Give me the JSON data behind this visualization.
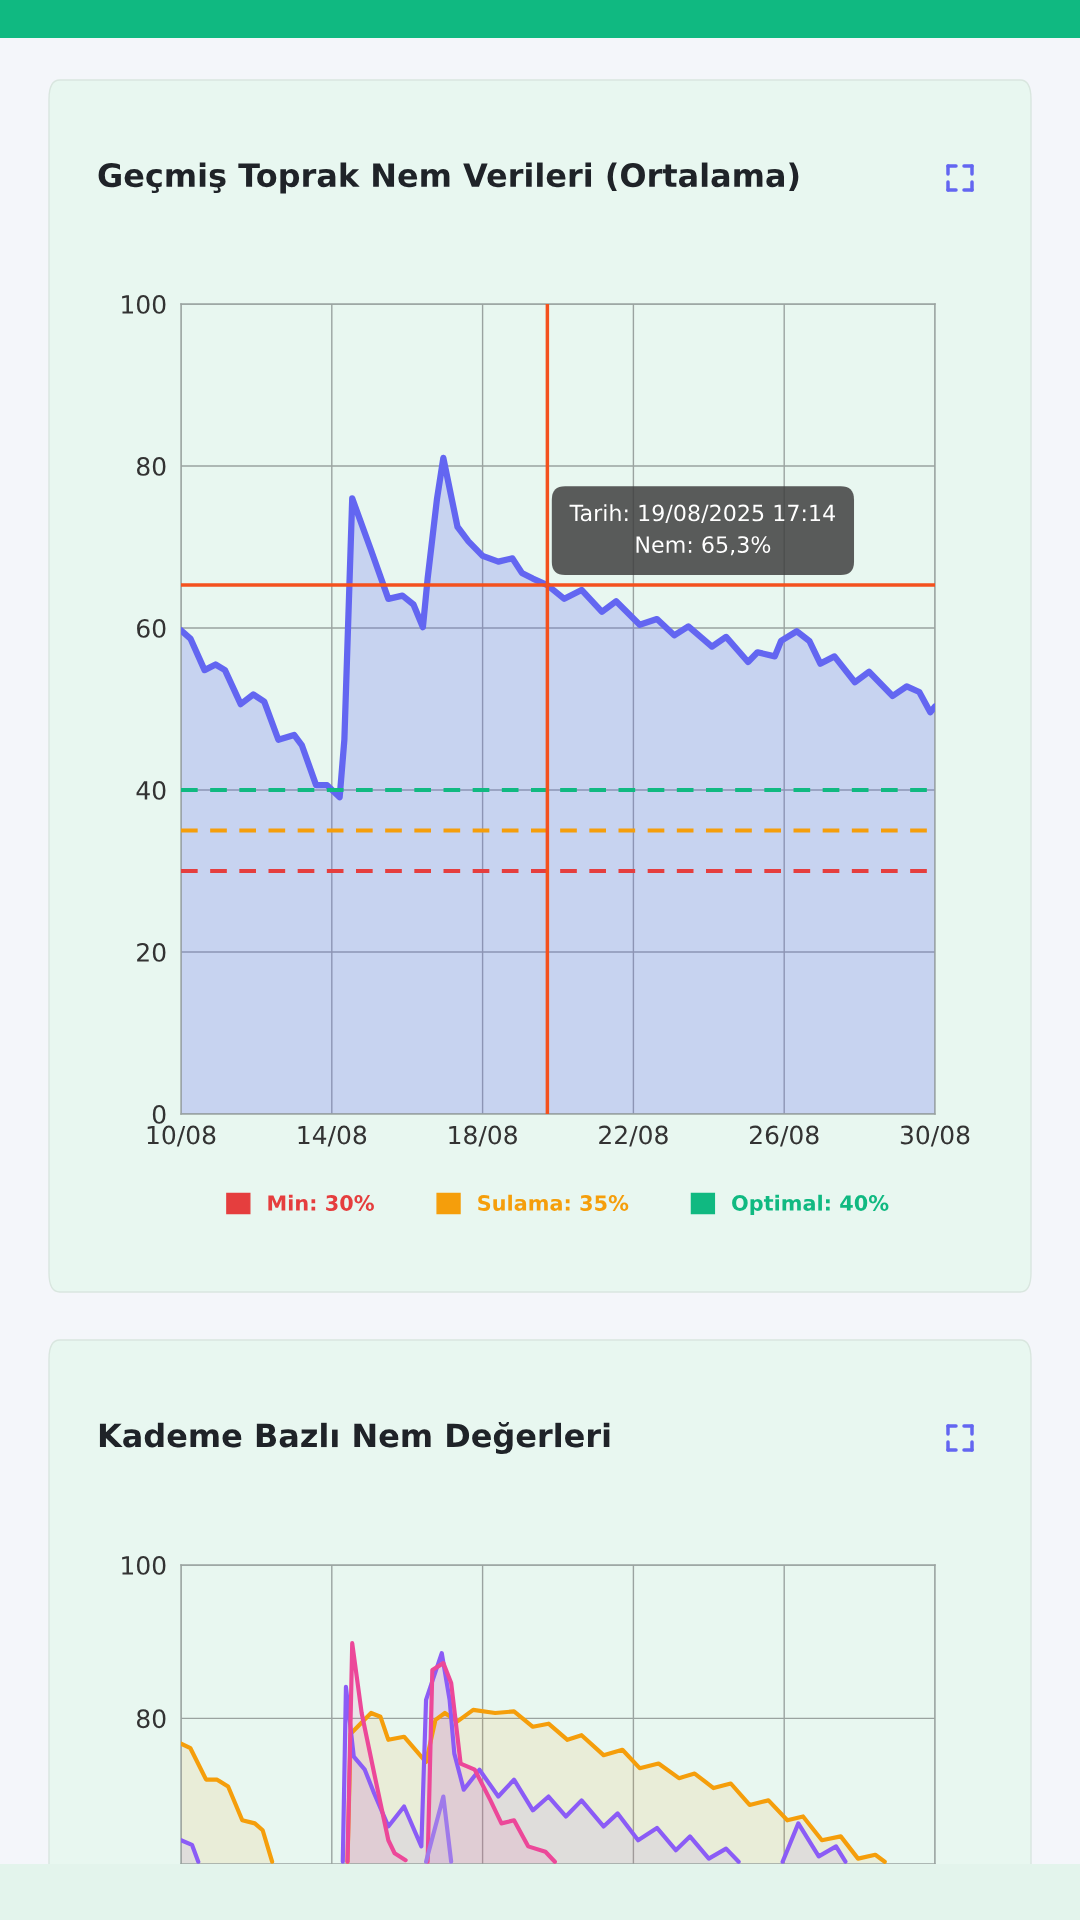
{
  "chart_data": [
    {
      "type": "area",
      "title": "Geçmiş Toprak Nem Verileri (Ortalama)",
      "x": [
        "2025-08-10T00:00",
        "2025-08-10T06:00",
        "2025-08-10T15:00",
        "2025-08-10T22:00",
        "2025-08-11T04:00",
        "2025-08-11T14:00",
        "2025-08-11T22:00",
        "2025-08-12T05:00",
        "2025-08-12T14:00",
        "2025-08-13T00:00",
        "2025-08-13T05:00",
        "2025-08-13T14:00",
        "2025-08-13T21:00",
        "2025-08-14T05:00",
        "2025-08-14T08:00",
        "2025-08-14T13:00",
        "2025-08-15T01:00",
        "2025-08-15T12:00",
        "2025-08-15T21:00",
        "2025-08-16T04:00",
        "2025-08-16T10:00",
        "2025-08-16T13:00",
        "2025-08-16T19:00",
        "2025-08-16T23:00",
        "2025-08-17T08:00",
        "2025-08-17T15:00",
        "2025-08-18T00:00",
        "2025-08-18T10:00",
        "2025-08-18T19:00",
        "2025-08-19T01:00",
        "2025-08-19T08:00",
        "2025-08-19T17:14",
        "2025-08-20T04:00",
        "2025-08-20T15:00",
        "2025-08-21T04:00",
        "2025-08-21T13:00",
        "2025-08-22T04:00",
        "2025-08-22T15:00",
        "2025-08-23T02:00",
        "2025-08-23T11:00",
        "2025-08-24T02:00",
        "2025-08-24T11:00",
        "2025-08-25T01:00",
        "2025-08-25T07:00",
        "2025-08-25T18:00",
        "2025-08-25T22:00",
        "2025-08-26T08:00",
        "2025-08-26T16:00",
        "2025-08-26T23:00",
        "2025-08-27T08:00",
        "2025-08-27T21:00",
        "2025-08-28T06:00",
        "2025-08-28T21:00",
        "2025-08-29T06:00",
        "2025-08-29T14:00",
        "2025-08-29T21:00",
        "2025-08-30T00:00"
      ],
      "series": [
        {
          "color": "#6366f1",
          "values": [
            59.7,
            58.7,
            54.8,
            55.5,
            54.8,
            50.6,
            51.8,
            50.9,
            46.2,
            46.8,
            45.5,
            40.6,
            40.6,
            39.1,
            46.2,
            76.0,
            69.6,
            63.6,
            64.0,
            62.9,
            60.1,
            66.1,
            76.0,
            81.0,
            72.5,
            70.7,
            68.9,
            68.2,
            68.6,
            66.8,
            66.1,
            65.3,
            63.6,
            64.7,
            62.0,
            63.3,
            60.4,
            61.1,
            59.1,
            60.2,
            57.7,
            58.9,
            55.8,
            57.0,
            56.5,
            58.4,
            59.6,
            58.4,
            55.6,
            56.5,
            53.3,
            54.6,
            51.6,
            52.8,
            52.1,
            49.6,
            50.3
          ]
        }
      ],
      "xlim": [
        "2025-08-10",
        "2025-08-30"
      ],
      "xticks": [
        {
          "value": "2025-08-10",
          "label": "10/08"
        },
        {
          "value": "2025-08-14",
          "label": "14/08"
        },
        {
          "value": "2025-08-18",
          "label": "18/08"
        },
        {
          "value": "2025-08-22",
          "label": "22/08"
        },
        {
          "value": "2025-08-26",
          "label": "26/08"
        },
        {
          "value": "2025-08-30",
          "label": "30/08"
        }
      ],
      "ylim": [
        0,
        100
      ],
      "yticks": [
        0,
        20,
        40,
        60,
        80,
        100
      ],
      "grid": true,
      "ref_lines": [
        {
          "axis": "y",
          "value": 30,
          "label": "Min: 30%",
          "color": "#e53e3e",
          "line_style": "dashed"
        },
        {
          "axis": "y",
          "value": 35,
          "label": "Sulama: 35%",
          "color": "#f59e0b",
          "line_style": "dashed"
        },
        {
          "axis": "y",
          "value": 40,
          "label": "Optimal: 40%",
          "color": "#10b981",
          "line_style": "dashed"
        },
        {
          "axis": "x",
          "value": "2025-08-19T17:14",
          "color": "#f4511e",
          "line_style": "solid"
        },
        {
          "axis": "y",
          "value": 65.3,
          "color": "#f4511e",
          "line_style": "solid"
        }
      ],
      "legend": "bottom",
      "annotations": [
        {
          "text": "Tarih: 19/08/2025 17:14\nNem: 65,3%",
          "x": "2025-08-19T17:14",
          "y": 65.3
        }
      ]
    },
    {
      "type": "area",
      "title": "Kademe Bazlı Nem Değerleri",
      "series": [
        {
          "color": "#f59e0b",
          "x": [
            "2025-08-10T00:00",
            "2025-08-10T06:00",
            "2025-08-10T16:00",
            "2025-08-10T23:00",
            "2025-08-11T06:00",
            "2025-08-11T15:00",
            "2025-08-11T23:00",
            "2025-08-12T04:00",
            "2025-08-12T10:00",
            "2025-08-13T00:00",
            "2025-08-14T10:00",
            "2025-08-14T12:00",
            "2025-08-15T01:00",
            "2025-08-15T07:00",
            "2025-08-15T12:00",
            "2025-08-15T22:00",
            "2025-08-16T12:00",
            "2025-08-16T18:00",
            "2025-08-17T00:00",
            "2025-08-17T08:00",
            "2025-08-17T18:00",
            "2025-08-18T08:00",
            "2025-08-18T20:00",
            "2025-08-19T08:00",
            "2025-08-19T18:00",
            "2025-08-20T06:00",
            "2025-08-20T15:00",
            "2025-08-21T05:00",
            "2025-08-21T17:00",
            "2025-08-22T04:00",
            "2025-08-22T16:00",
            "2025-08-23T05:00",
            "2025-08-23T15:00",
            "2025-08-24T03:00",
            "2025-08-24T14:00",
            "2025-08-25T02:00",
            "2025-08-25T14:00",
            "2025-08-26T02:00",
            "2025-08-26T12:00",
            "2025-08-27T00:00",
            "2025-08-27T12:00",
            "2025-08-27T23:00",
            "2025-08-28T10:00",
            "2025-08-28T16:00"
          ],
          "values": [
            76.7,
            76.1,
            72.0,
            72.0,
            71.1,
            66.7,
            66.3,
            65.4,
            61.3,
            null,
            61.3,
            78.0,
            80.7,
            80.2,
            77.2,
            77.6,
            74.3,
            79.8,
            80.7,
            79.6,
            81.1,
            80.7,
            80.9,
            78.9,
            79.3,
            77.2,
            77.8,
            75.2,
            75.9,
            73.5,
            74.1,
            72.2,
            72.8,
            70.9,
            71.5,
            68.7,
            69.3,
            66.7,
            67.2,
            64.1,
            64.6,
            61.7,
            62.2,
            61.3
          ]
        },
        {
          "color": "#8b5cf6",
          "x": [
            "2025-08-10T00:00",
            "2025-08-10T07:00",
            "2025-08-10T11:00",
            "2025-08-12T00:00",
            "2025-08-14T07:00",
            "2025-08-14T09:00",
            "2025-08-14T14:00",
            "2025-08-14T21:00",
            "2025-08-15T03:00",
            "2025-08-15T12:00",
            "2025-08-15T22:00",
            "2025-08-16T09:00",
            "2025-08-16T12:00",
            "2025-08-16T22:00",
            "2025-08-17T03:00",
            "2025-08-17T06:00",
            "2025-08-17T12:00",
            "2025-08-17T22:00",
            "2025-08-18T10:00",
            "2025-08-18T20:00",
            "2025-08-19T08:00",
            "2025-08-19T18:00",
            "2025-08-20T05:00",
            "2025-08-20T15:00",
            "2025-08-21T05:00",
            "2025-08-21T14:00",
            "2025-08-22T03:00",
            "2025-08-22T15:00",
            "2025-08-23T03:00",
            "2025-08-23T12:00",
            "2025-08-24T00:00",
            "2025-08-24T11:00",
            "2025-08-24T19:00",
            "2025-08-25T10:00",
            "2025-08-25T23:00",
            "2025-08-26T09:00",
            "2025-08-26T22:00",
            "2025-08-27T09:00",
            "2025-08-27T15:00"
          ],
          "values": [
            64.1,
            63.5,
            61.3,
            null,
            61.3,
            84.1,
            75.0,
            73.3,
            70.2,
            65.9,
            68.5,
            63.3,
            82.4,
            88.5,
            82.4,
            75.4,
            70.7,
            73.3,
            69.8,
            72.0,
            68.0,
            69.8,
            67.2,
            69.3,
            65.9,
            67.6,
            64.1,
            65.7,
            62.8,
            64.6,
            61.7,
            63.0,
            61.3,
            null,
            61.3,
            66.3,
            62.0,
            63.3,
            61.3
          ]
        },
        {
          "color": "#ec4899",
          "x": [
            "2025-08-14T10:00",
            "2025-08-14T13:00",
            "2025-08-14T19:00",
            "2025-08-15T03:00",
            "2025-08-15T12:00",
            "2025-08-15T16:00",
            "2025-08-15T23:00",
            "2025-08-16T06:00",
            "2025-08-16T13:00",
            "2025-08-16T16:00",
            "2025-08-16T23:00",
            "2025-08-17T04:00",
            "2025-08-17T10:00",
            "2025-08-17T19:00",
            "2025-08-18T05:00",
            "2025-08-18T12:00",
            "2025-08-18T20:00",
            "2025-08-19T05:00",
            "2025-08-19T16:00",
            "2025-08-19T22:00"
          ],
          "values": [
            61.3,
            89.8,
            80.7,
            72.8,
            64.1,
            62.4,
            61.5,
            null,
            61.3,
            86.3,
            87.2,
            84.6,
            74.1,
            73.3,
            69.3,
            66.3,
            66.7,
            63.3,
            62.6,
            61.3
          ]
        },
        {
          "color": "#9f7aea",
          "x": [
            "2025-08-16T12:00",
            "2025-08-16T23:00",
            "2025-08-17T04:00"
          ],
          "values": [
            61.3,
            69.8,
            61.3
          ]
        }
      ],
      "xlim": [
        "2025-08-10",
        "2025-08-30"
      ],
      "xticks": [
        {
          "value": "2025-08-10",
          "label": null
        },
        {
          "value": "2025-08-14",
          "label": null
        },
        {
          "value": "2025-08-18",
          "label": null
        },
        {
          "value": "2025-08-22",
          "label": null
        },
        {
          "value": "2025-08-26",
          "label": null
        },
        {
          "value": "2025-08-30",
          "label": null
        }
      ],
      "ylim": [
        61,
        100
      ],
      "yticks": [
        80,
        100
      ],
      "grid": true,
      "tick_labels": "y"
    }
  ]
}
